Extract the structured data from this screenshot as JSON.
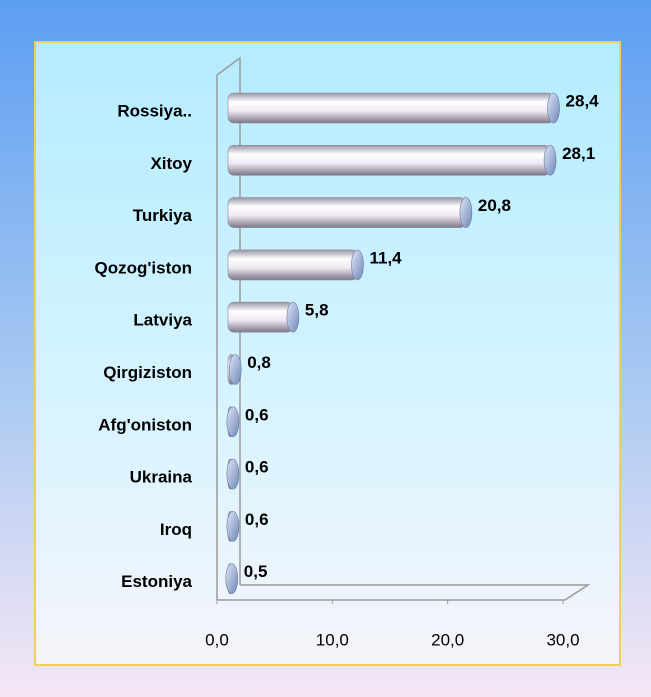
{
  "chart_data": {
    "type": "bar",
    "orientation": "horizontal",
    "categories": [
      "Rossiya..",
      "Xitoy",
      "Turkiya",
      "Qozog'iston",
      "Latviya",
      "Qirgiziston",
      "Afg'oniston",
      "Ukraina",
      "Iroq",
      "Estoniya"
    ],
    "values": [
      28.4,
      28.1,
      20.8,
      11.4,
      5.8,
      0.8,
      0.6,
      0.6,
      0.6,
      0.5
    ],
    "value_labels": [
      "28,4",
      "28,1",
      "20,8",
      "11,4",
      "5,8",
      "0,8",
      "0,6",
      "0,6",
      "0,6",
      "0,5"
    ],
    "color": "#f4f0f6",
    "xlim": [
      0,
      30
    ],
    "xticks": [
      {
        "value": 0,
        "label": "0,0"
      },
      {
        "value": 10,
        "label": "10,0"
      },
      {
        "value": 20,
        "label": "20,0"
      },
      {
        "value": 30,
        "label": "30,0"
      }
    ],
    "grid": false
  }
}
